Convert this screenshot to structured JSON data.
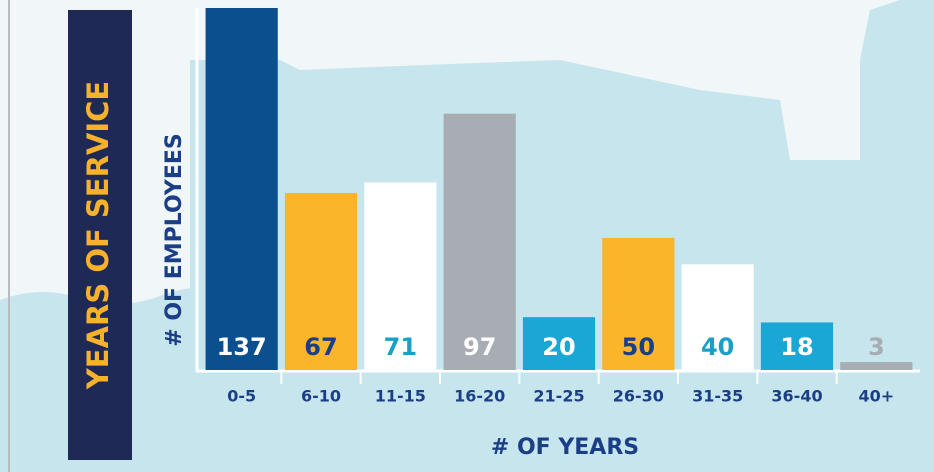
{
  "chart_data": {
    "type": "bar",
    "title": "YEARS OF SERVICE",
    "y_label": "# OF EMPLOYEES",
    "x_label": "# OF YEARS",
    "categories": [
      "0-5",
      "6-10",
      "11-15",
      "16-20",
      "21-25",
      "26-30",
      "31-35",
      "36-40",
      "40+"
    ],
    "values": [
      137,
      67,
      71,
      97,
      20,
      50,
      40,
      18,
      3
    ],
    "colors": [
      "#0b4f8f",
      "#fbb52b",
      "#ffffff",
      "#a8adb3",
      "#1aa7d6",
      "#fbb52b",
      "#ffffff",
      "#1aa7d6",
      "#a8adb3"
    ],
    "label_colors": [
      "#ffffff",
      "#1b3f86",
      "#1aa0c8",
      "#ffffff",
      "#ffffff",
      "#1b3f86",
      "#1aa0c8",
      "#ffffff",
      "#a8adb3"
    ],
    "ylim": [
      0,
      137
    ]
  }
}
